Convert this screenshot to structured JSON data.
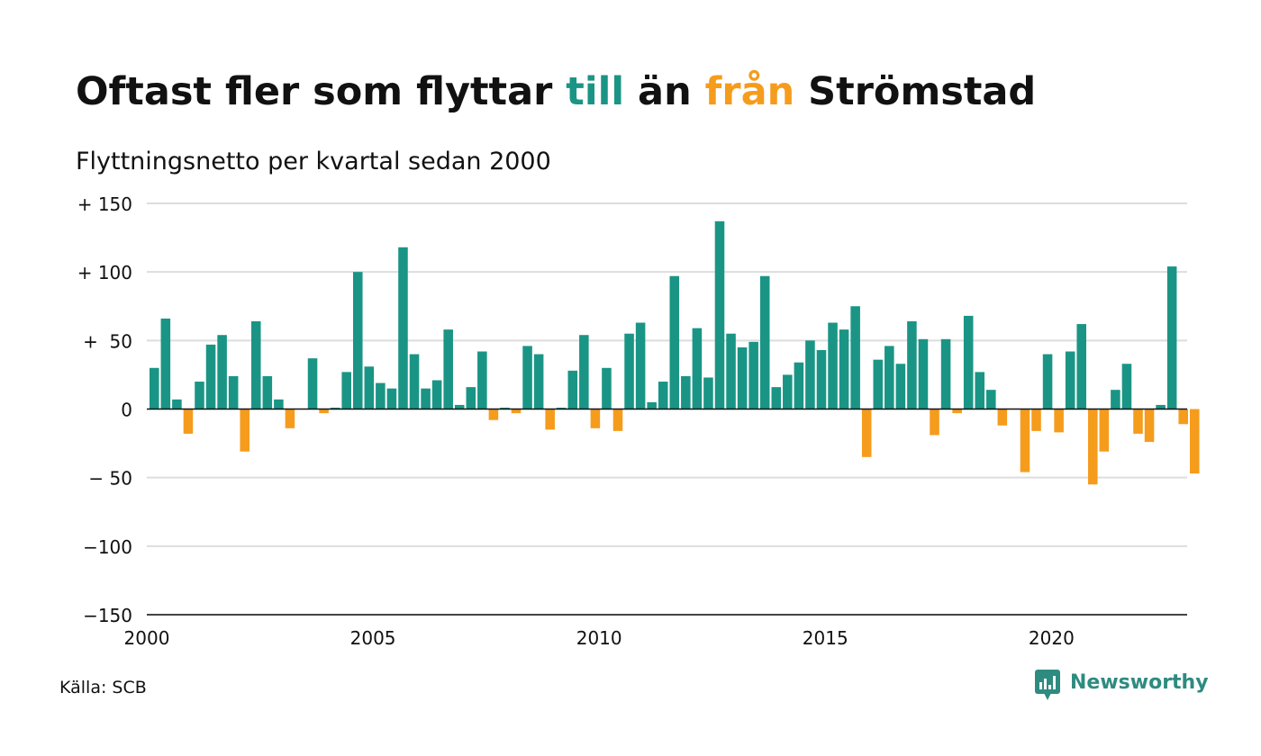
{
  "title": {
    "part1": "Oftast fler som flyttar ",
    "part2": "till",
    "part3": " än ",
    "part4": "från",
    "part5": " Strömstad"
  },
  "subtitle": "Flyttningsnetto per kvartal sedan 2000",
  "source": "Källa: SCB",
  "brand": {
    "name": "Newsworthy",
    "icon": "newsworthy-logo-icon"
  },
  "colors": {
    "positive": "#1a9585",
    "negative": "#f59c1d",
    "grid": "#dddddd",
    "brand": "#2e8b80"
  },
  "chart_data": {
    "type": "bar",
    "title": "Oftast fler som flyttar till än från Strömstad",
    "subtitle": "Flyttningsnetto per kvartal sedan 2000",
    "x_start": 2000,
    "periods_per_year": 4,
    "ylim": [
      -150,
      150
    ],
    "xlim": [
      2000,
      2023
    ],
    "grid": true,
    "y_ticks": [
      {
        "value": 150,
        "label": "+ 150"
      },
      {
        "value": 100,
        "label": "+ 100"
      },
      {
        "value": 50,
        "label": "+  50"
      },
      {
        "value": 0,
        "label": "0"
      },
      {
        "value": -50,
        "label": "− 50"
      },
      {
        "value": -100,
        "label": "−100"
      },
      {
        "value": -150,
        "label": "−150"
      }
    ],
    "x_ticks": [
      {
        "value": 2000,
        "label": "2000"
      },
      {
        "value": 2005,
        "label": "2005"
      },
      {
        "value": 2010,
        "label": "2010"
      },
      {
        "value": 2015,
        "label": "2015"
      },
      {
        "value": 2020,
        "label": "2020"
      }
    ],
    "values": [
      30,
      66,
      7,
      -18,
      20,
      47,
      54,
      24,
      -31,
      64,
      24,
      7,
      -14,
      0,
      37,
      -3,
      1,
      27,
      100,
      31,
      19,
      15,
      118,
      40,
      15,
      21,
      58,
      3,
      16,
      42,
      -8,
      1,
      -3,
      46,
      40,
      -15,
      1,
      28,
      54,
      -14,
      30,
      -16,
      55,
      63,
      5,
      20,
      97,
      24,
      59,
      23,
      137,
      55,
      45,
      49,
      97,
      16,
      25,
      34,
      50,
      43,
      63,
      58,
      75,
      -35,
      36,
      46,
      33,
      64,
      51,
      -19,
      51,
      -3,
      68,
      27,
      14,
      -12,
      0,
      -46,
      -16,
      40,
      -17,
      42,
      62,
      -55,
      -31,
      14,
      33,
      -18,
      -24,
      3,
      104,
      -11,
      -47
    ]
  }
}
